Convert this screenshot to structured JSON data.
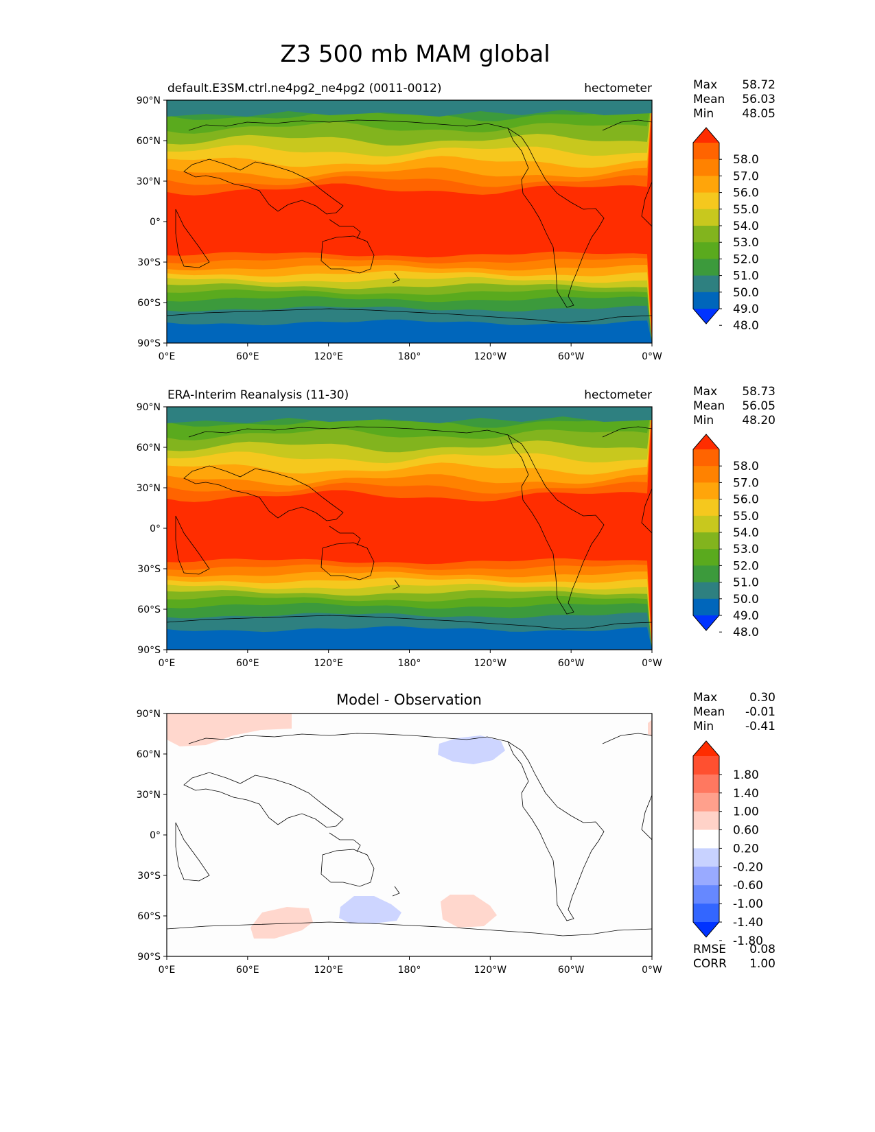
{
  "title": "Z3 500 mb MAM global",
  "axes": {
    "lat_labels": [
      "90°N",
      "60°N",
      "30°N",
      "0°",
      "30°S",
      "60°S",
      "90°S"
    ],
    "lon_labels": [
      "0°E",
      "60°E",
      "120°E",
      "180°",
      "120°W",
      "60°W",
      "0°W"
    ],
    "lat_values": [
      90,
      60,
      30,
      0,
      -30,
      -60,
      -90
    ],
    "lon_values": [
      0,
      60,
      120,
      180,
      240,
      300,
      360
    ]
  },
  "stat_labels": {
    "max": "Max",
    "mean": "Mean",
    "min": "Min",
    "rmse": "RMSE",
    "corr": "CORR"
  },
  "colors": {
    "z3": [
      "#0033ff",
      "#0066bb",
      "#2e8080",
      "#3c9a3c",
      "#5aaa1e",
      "#82b41e",
      "#c8c81e",
      "#f5c81e",
      "#ffa50a",
      "#ff8200",
      "#ff6400",
      "#ff2d00"
    ],
    "diff": [
      "#0033ff",
      "#3366ff",
      "#6688ff",
      "#99aaff",
      "#c8d2ff",
      "#ffffff",
      "#ffd2c8",
      "#ffa08c",
      "#ff7860",
      "#ff5030",
      "#ff2d00"
    ]
  },
  "panels": [
    {
      "left_title": "default.E3SM.ctrl.ne4pg2_ne4pg2 (0011-0012)",
      "right_title": "hectometer",
      "center_title": "",
      "stats": {
        "max": "58.72",
        "mean": "56.03",
        "min": "48.05"
      },
      "colorbar_ticks": [
        "58.0",
        "57.0",
        "56.0",
        "55.0",
        "54.0",
        "53.0",
        "52.0",
        "51.0",
        "50.0",
        "49.0",
        "48.0"
      ]
    },
    {
      "left_title": "ERA-Interim Reanalysis (11-30)",
      "right_title": "hectometer",
      "center_title": "",
      "stats": {
        "max": "58.73",
        "mean": "56.05",
        "min": "48.20"
      },
      "colorbar_ticks": [
        "58.0",
        "57.0",
        "56.0",
        "55.0",
        "54.0",
        "53.0",
        "52.0",
        "51.0",
        "50.0",
        "49.0",
        "48.0"
      ]
    },
    {
      "left_title": "",
      "right_title": "",
      "center_title": "Model - Observation",
      "stats": {
        "max": "0.30",
        "mean": "-0.01",
        "min": "-0.41",
        "rmse": "0.08",
        "corr": "1.00"
      },
      "colorbar_ticks": [
        "1.80",
        "1.40",
        "1.00",
        "0.60",
        "0.20",
        "-0.20",
        "-0.60",
        "-1.00",
        "-1.40",
        "-1.80"
      ]
    }
  ]
}
